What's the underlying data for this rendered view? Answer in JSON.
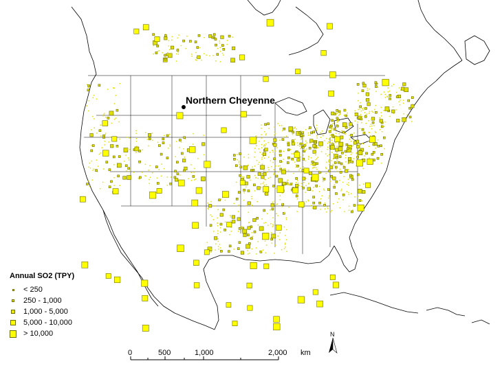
{
  "site": {
    "label": "Northern Cheyenne"
  },
  "legend": {
    "title": "Annual SO2 (TPY)",
    "items": [
      {
        "label": "< 250",
        "color": "#e8e800"
      },
      {
        "label": "250 - 1,000",
        "color": "#e8e800"
      },
      {
        "label": "1,000 - 5,000",
        "color": "#e8e800"
      },
      {
        "label": "5,000 - 10,000",
        "color": "#ffff00"
      },
      {
        "label": "> 10,000",
        "color": "#ffff00"
      }
    ]
  },
  "scale": {
    "ticks": [
      "0",
      "500",
      "1,000",
      "2,000"
    ],
    "unit": "km"
  },
  "north_arrow": {
    "label": "N"
  },
  "colors": {
    "symbol_fill": "#ffff00",
    "symbol_stroke": "#6b6b00",
    "outline": "#000000"
  }
}
